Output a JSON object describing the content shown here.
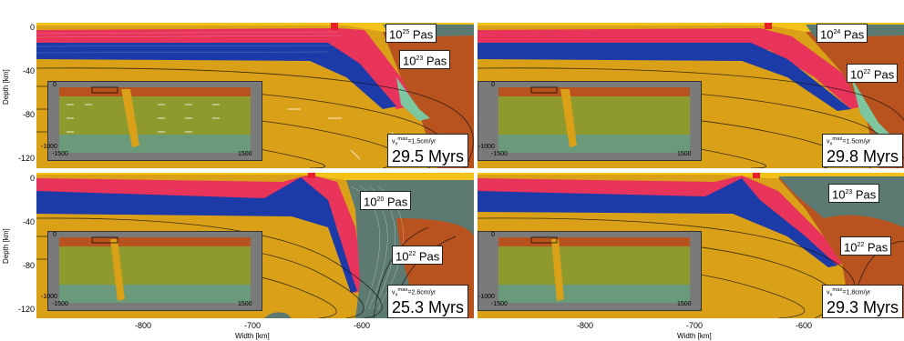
{
  "figure": {
    "y_axis_label": "Depth [km]",
    "x_axis_label": "Width [km]",
    "y_ticks": [
      "0",
      "-40",
      "-80",
      "-120"
    ],
    "x_ticks": [
      "-800",
      "-700",
      "-600"
    ],
    "inset_ticks": {
      "top": "0",
      "bottom": "-1000",
      "left": "-1500",
      "right": "1500"
    }
  },
  "panels": [
    {
      "viscosity_upper": "10",
      "viscosity_upper_exp": "25",
      "viscosity_lower": "10",
      "viscosity_lower_exp": "23",
      "unit": "Pas",
      "velocity_sym": "v",
      "velocity_sub": "x",
      "velocity_sup": "max",
      "velocity_value": "=1.5cm/yr",
      "time": "29.5 Myrs"
    },
    {
      "viscosity_upper": "10",
      "viscosity_upper_exp": "24",
      "viscosity_lower": "10",
      "viscosity_lower_exp": "22",
      "unit": "Pas",
      "velocity_sym": "v",
      "velocity_sub": "x",
      "velocity_sup": "max",
      "velocity_value": "=1.5cm/yr",
      "time": "29.8 Myrs"
    },
    {
      "viscosity_upper": "10",
      "viscosity_upper_exp": "20",
      "viscosity_lower": "10",
      "viscosity_lower_exp": "22",
      "unit": "Pas",
      "velocity_sym": "v",
      "velocity_sub": "x",
      "velocity_sup": "max",
      "velocity_value": "=2.6cm/yr",
      "time": "25.3 Myrs"
    },
    {
      "viscosity_upper": "10",
      "viscosity_upper_exp": "23",
      "viscosity_lower": "10",
      "viscosity_lower_exp": "22",
      "unit": "Pas",
      "velocity_sym": "v",
      "velocity_sub": "x",
      "velocity_sup": "max",
      "velocity_value": "=1.8cm/yr",
      "time": "29.3 Myrs"
    }
  ],
  "colors": {
    "mantle": "#d9a018",
    "crust_red": "#e8335a",
    "crust_blue": "#1c3aa8",
    "upper_yellow": "#f2c21a",
    "overriding": "#b8521e",
    "weak_zone": "#5c7a72",
    "trench_green": "#7cc6a0",
    "marker": "#e8202a",
    "inset_bg": "#7a7a7a",
    "inset_olive": "#8f9a2e",
    "inset_teal": "#6a9a7a"
  }
}
